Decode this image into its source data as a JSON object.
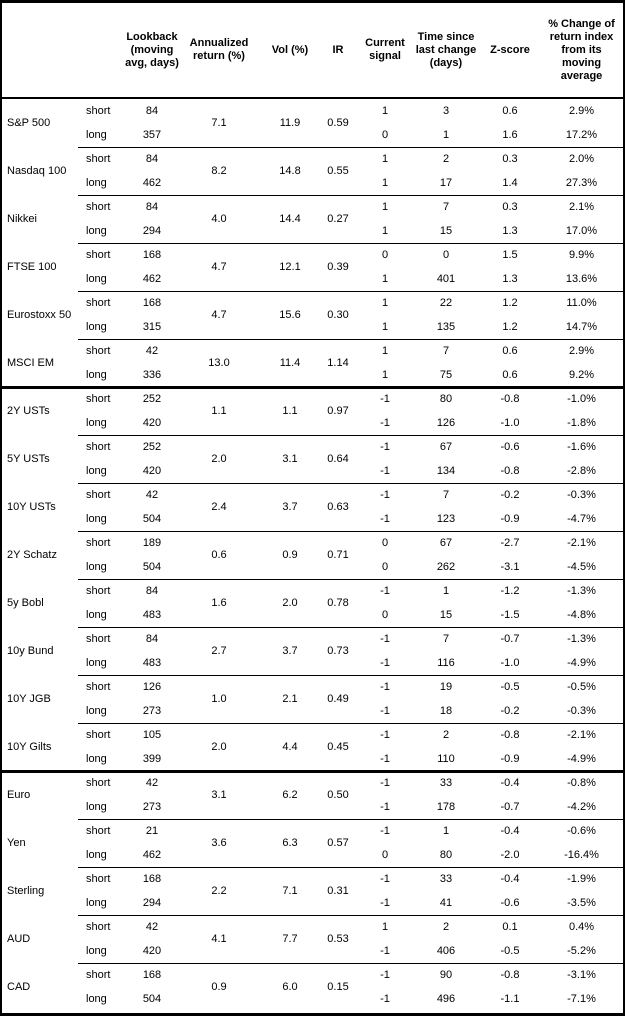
{
  "colors": {
    "text": "#000000",
    "background": "#ffffff",
    "border": "#000000"
  },
  "table": {
    "columns": [
      {
        "label": ""
      },
      {
        "label": ""
      },
      {
        "label": "Lookback\n(moving\navg, days)"
      },
      {
        "label": "Annualized\nreturn (%)"
      },
      {
        "label": "Vol (%)"
      },
      {
        "label": "IR"
      },
      {
        "label": "Current\nsignal"
      },
      {
        "label": "Time since\nlast change\n(days)"
      },
      {
        "label": "Z-score"
      },
      {
        "label": "% Change of\nreturn index\nfrom its\nmoving\naverage"
      }
    ],
    "row_labels": {
      "short": "short",
      "long": "long"
    },
    "section_breaks_before_group_index": [
      6,
      14
    ],
    "groups": [
      {
        "name": "S&P 500",
        "ann_return": "7.1",
        "vol": "11.9",
        "ir": "0.59",
        "short": {
          "lookback": "84",
          "signal": "1",
          "time": "3",
          "z": "0.6",
          "pct": "2.9%"
        },
        "long": {
          "lookback": "357",
          "signal": "0",
          "time": "1",
          "z": "1.6",
          "pct": "17.2%"
        }
      },
      {
        "name": "Nasdaq 100",
        "ann_return": "8.2",
        "vol": "14.8",
        "ir": "0.55",
        "short": {
          "lookback": "84",
          "signal": "1",
          "time": "2",
          "z": "0.3",
          "pct": "2.0%"
        },
        "long": {
          "lookback": "462",
          "signal": "1",
          "time": "17",
          "z": "1.4",
          "pct": "27.3%"
        }
      },
      {
        "name": "Nikkei",
        "ann_return": "4.0",
        "vol": "14.4",
        "ir": "0.27",
        "short": {
          "lookback": "84",
          "signal": "1",
          "time": "7",
          "z": "0.3",
          "pct": "2.1%"
        },
        "long": {
          "lookback": "294",
          "signal": "1",
          "time": "15",
          "z": "1.3",
          "pct": "17.0%"
        }
      },
      {
        "name": "FTSE 100",
        "ann_return": "4.7",
        "vol": "12.1",
        "ir": "0.39",
        "short": {
          "lookback": "168",
          "signal": "0",
          "time": "0",
          "z": "1.5",
          "pct": "9.9%"
        },
        "long": {
          "lookback": "462",
          "signal": "1",
          "time": "401",
          "z": "1.3",
          "pct": "13.6%"
        }
      },
      {
        "name": "Eurostoxx 50",
        "ann_return": "4.7",
        "vol": "15.6",
        "ir": "0.30",
        "short": {
          "lookback": "168",
          "signal": "1",
          "time": "22",
          "z": "1.2",
          "pct": "11.0%"
        },
        "long": {
          "lookback": "315",
          "signal": "1",
          "time": "135",
          "z": "1.2",
          "pct": "14.7%"
        }
      },
      {
        "name": "MSCI EM",
        "ann_return": "13.0",
        "vol": "11.4",
        "ir": "1.14",
        "short": {
          "lookback": "42",
          "signal": "1",
          "time": "7",
          "z": "0.6",
          "pct": "2.9%"
        },
        "long": {
          "lookback": "336",
          "signal": "1",
          "time": "75",
          "z": "0.6",
          "pct": "9.2%"
        }
      },
      {
        "name": "2Y USTs",
        "ann_return": "1.1",
        "vol": "1.1",
        "ir": "0.97",
        "short": {
          "lookback": "252",
          "signal": "-1",
          "time": "80",
          "z": "-0.8",
          "pct": "-1.0%"
        },
        "long": {
          "lookback": "420",
          "signal": "-1",
          "time": "126",
          "z": "-1.0",
          "pct": "-1.8%"
        }
      },
      {
        "name": "5Y USTs",
        "ann_return": "2.0",
        "vol": "3.1",
        "ir": "0.64",
        "short": {
          "lookback": "252",
          "signal": "-1",
          "time": "67",
          "z": "-0.6",
          "pct": "-1.6%"
        },
        "long": {
          "lookback": "420",
          "signal": "-1",
          "time": "134",
          "z": "-0.8",
          "pct": "-2.8%"
        }
      },
      {
        "name": "10Y USTs",
        "ann_return": "2.4",
        "vol": "3.7",
        "ir": "0.63",
        "short": {
          "lookback": "42",
          "signal": "-1",
          "time": "7",
          "z": "-0.2",
          "pct": "-0.3%"
        },
        "long": {
          "lookback": "504",
          "signal": "-1",
          "time": "123",
          "z": "-0.9",
          "pct": "-4.7%"
        }
      },
      {
        "name": "2Y Schatz",
        "ann_return": "0.6",
        "vol": "0.9",
        "ir": "0.71",
        "short": {
          "lookback": "189",
          "signal": "0",
          "time": "67",
          "z": "-2.7",
          "pct": "-2.1%"
        },
        "long": {
          "lookback": "504",
          "signal": "0",
          "time": "262",
          "z": "-3.1",
          "pct": "-4.5%"
        }
      },
      {
        "name": "5y Bobl",
        "ann_return": "1.6",
        "vol": "2.0",
        "ir": "0.78",
        "short": {
          "lookback": "84",
          "signal": "-1",
          "time": "1",
          "z": "-1.2",
          "pct": "-1.3%"
        },
        "long": {
          "lookback": "483",
          "signal": "0",
          "time": "15",
          "z": "-1.5",
          "pct": "-4.8%"
        }
      },
      {
        "name": "10y Bund",
        "ann_return": "2.7",
        "vol": "3.7",
        "ir": "0.73",
        "short": {
          "lookback": "84",
          "signal": "-1",
          "time": "7",
          "z": "-0.7",
          "pct": "-1.3%"
        },
        "long": {
          "lookback": "483",
          "signal": "-1",
          "time": "116",
          "z": "-1.0",
          "pct": "-4.9%"
        }
      },
      {
        "name": "10Y JGB",
        "ann_return": "1.0",
        "vol": "2.1",
        "ir": "0.49",
        "short": {
          "lookback": "126",
          "signal": "-1",
          "time": "19",
          "z": "-0.5",
          "pct": "-0.5%"
        },
        "long": {
          "lookback": "273",
          "signal": "-1",
          "time": "18",
          "z": "-0.2",
          "pct": "-0.3%"
        }
      },
      {
        "name": "10Y Gilts",
        "ann_return": "2.0",
        "vol": "4.4",
        "ir": "0.45",
        "short": {
          "lookback": "105",
          "signal": "-1",
          "time": "2",
          "z": "-0.8",
          "pct": "-2.1%"
        },
        "long": {
          "lookback": "399",
          "signal": "-1",
          "time": "110",
          "z": "-0.9",
          "pct": "-4.9%"
        }
      },
      {
        "name": "Euro",
        "ann_return": "3.1",
        "vol": "6.2",
        "ir": "0.50",
        "short": {
          "lookback": "42",
          "signal": "-1",
          "time": "33",
          "z": "-0.4",
          "pct": "-0.8%"
        },
        "long": {
          "lookback": "273",
          "signal": "-1",
          "time": "178",
          "z": "-0.7",
          "pct": "-4.2%"
        }
      },
      {
        "name": "Yen",
        "ann_return": "3.6",
        "vol": "6.3",
        "ir": "0.57",
        "short": {
          "lookback": "21",
          "signal": "-1",
          "time": "1",
          "z": "-0.4",
          "pct": "-0.6%"
        },
        "long": {
          "lookback": "462",
          "signal": "0",
          "time": "80",
          "z": "-2.0",
          "pct": "-16.4%"
        }
      },
      {
        "name": "Sterling",
        "ann_return": "2.2",
        "vol": "7.1",
        "ir": "0.31",
        "short": {
          "lookback": "168",
          "signal": "-1",
          "time": "33",
          "z": "-0.4",
          "pct": "-1.9%"
        },
        "long": {
          "lookback": "294",
          "signal": "-1",
          "time": "41",
          "z": "-0.6",
          "pct": "-3.5%"
        }
      },
      {
        "name": "AUD",
        "ann_return": "4.1",
        "vol": "7.7",
        "ir": "0.53",
        "short": {
          "lookback": "42",
          "signal": "1",
          "time": "2",
          "z": "0.1",
          "pct": "0.4%"
        },
        "long": {
          "lookback": "420",
          "signal": "-1",
          "time": "406",
          "z": "-0.5",
          "pct": "-5.2%"
        }
      },
      {
        "name": "CAD",
        "ann_return": "0.9",
        "vol": "6.0",
        "ir": "0.15",
        "short": {
          "lookback": "168",
          "signal": "-1",
          "time": "90",
          "z": "-0.8",
          "pct": "-3.1%"
        },
        "long": {
          "lookback": "504",
          "signal": "-1",
          "time": "496",
          "z": "-1.1",
          "pct": "-7.1%"
        }
      }
    ]
  }
}
